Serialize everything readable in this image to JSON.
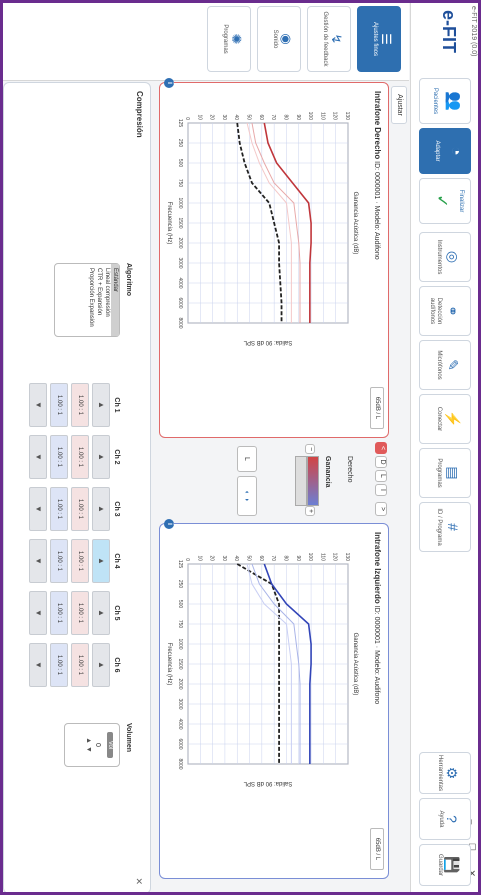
{
  "window": {
    "title": "e-FIT 2019 (0.0)",
    "controls": "– ☐ ✕"
  },
  "logo": "e-FIT",
  "mode_buttons": [
    {
      "label": "Pacientes",
      "icon": "people-icon"
    },
    {
      "label": "Adaptar",
      "icon": "hearing-aid-icon"
    },
    {
      "label": "Finalizar",
      "icon": "check-icon"
    }
  ],
  "nav": [
    {
      "label": "Instrumentos",
      "icon": "target-icon"
    },
    {
      "label": "Detección audífonos",
      "icon": "link-icon"
    },
    {
      "label": "Micrófonos",
      "icon": "mic-icon"
    },
    {
      "label": "Conectar",
      "icon": "plug-icon"
    },
    {
      "label": "Programas",
      "icon": "doc-icon"
    },
    {
      "label": "ID / Programa",
      "icon": "id-icon"
    }
  ],
  "right_tools": [
    {
      "label": "Herramientas",
      "icon": "tools-icon"
    },
    {
      "label": "Ayuda",
      "icon": "help-icon"
    },
    {
      "label": "Guardar",
      "icon": "save-icon"
    }
  ],
  "left_panel": [
    {
      "label": "Ajustes finos",
      "icon": "sliders-icon"
    },
    {
      "label": "Gestión de feedback",
      "icon": "feedback-icon"
    },
    {
      "label": "Sonido",
      "icon": "wave-icon"
    },
    {
      "label": "Programas",
      "icon": "gear-icon"
    }
  ],
  "tab": "Ajustar",
  "right_panel": {
    "ear": "Derecho",
    "ear_prefix": "Intrafone",
    "subtitle": "ID: 0000001 · Modelo: Audifono",
    "selector": "65dB / L"
  },
  "left_panel_chart": {
    "ear": "Izquierdo",
    "ear_prefix": "Intrafone",
    "subtitle": "ID: 0000001 · Modelo: Audifono",
    "selector": "65dB / L"
  },
  "center": {
    "ganancia": "Ganancia",
    "ear_label": "Derecho",
    "btn_prev": "<",
    "btn_next": ">",
    "link_label": "L",
    "tone_labels": [
      "D",
      "L",
      "I"
    ]
  },
  "chart_data": [
    {
      "type": "line",
      "title": "Ganancia Acústica (dB)",
      "xlabel": "Frecuencia (Hz)",
      "ylabel": "Salida: 90 dB SPL",
      "x": [
        125,
        250,
        500,
        750,
        1000,
        1500,
        2000,
        3000,
        4000,
        6000,
        8000
      ],
      "ylim": [
        0,
        130
      ],
      "grid": true,
      "series": [
        {
          "color": "#222222",
          "values": [
            40,
            42,
            46,
            52,
            66,
            70,
            74,
            74,
            75,
            76,
            76
          ]
        },
        {
          "color": "#e8a9a9",
          "values": [
            52,
            55,
            62,
            70,
            86,
            88,
            90,
            91,
            91,
            91,
            91
          ]
        },
        {
          "color": "#f4c9c9",
          "values": [
            48,
            52,
            58,
            66,
            80,
            82,
            84,
            84,
            84,
            84,
            84
          ]
        },
        {
          "color": "#c0363b",
          "values": [
            62,
            65,
            72,
            85,
            98,
            100,
            100,
            99,
            99,
            99,
            99
          ]
        }
      ]
    },
    {
      "type": "line",
      "title": "Ganancia Acústica (dB)",
      "xlabel": "Frecuencia (Hz)",
      "ylabel": "Salida: 90 dB SPL",
      "x": [
        125,
        250,
        500,
        750,
        1000,
        1500,
        2000,
        3000,
        4000,
        6000,
        8000
      ],
      "ylim": [
        0,
        130
      ],
      "grid": true,
      "series": [
        {
          "color": "#222222",
          "values": [
            40,
            68,
            74,
            74,
            74,
            74,
            74,
            74,
            74,
            74,
            74
          ]
        },
        {
          "color": "#a9b4e8",
          "values": [
            52,
            58,
            70,
            86,
            88,
            90,
            91,
            91,
            91,
            91,
            91
          ]
        },
        {
          "color": "#c9cff4",
          "values": [
            48,
            52,
            62,
            80,
            82,
            84,
            84,
            84,
            84,
            84,
            84
          ]
        },
        {
          "color": "#3245b8",
          "values": [
            62,
            68,
            80,
            98,
            100,
            100,
            99,
            99,
            99,
            99,
            99
          ]
        }
      ]
    }
  ],
  "bottom": {
    "title": "Compresión",
    "close": "✕",
    "algoritmo_title": "Algoritmo",
    "algoritmos": [
      "Estándar",
      "Lineal compresión",
      "CTR + Expansión",
      "Proporción Expansión"
    ],
    "algoritmo_selected": 0,
    "channels": [
      {
        "label": "Ch 1",
        "r": "1.00 : 1",
        "l": "1.00 : 1"
      },
      {
        "label": "Ch 2",
        "r": "1.00 : 1",
        "l": "1.00 : 1"
      },
      {
        "label": "Ch 3",
        "r": "1.00 : 1",
        "l": "1.00 : 1"
      },
      {
        "label": "Ch 4",
        "r": "1.00 : 1",
        "l": "1.00 : 1"
      },
      {
        "label": "Ch 5",
        "r": "1.00 : 1",
        "l": "1.00 : 1"
      },
      {
        "label": "Ch 6",
        "r": "1.00 : 1",
        "l": "1.00 : 1"
      }
    ],
    "highlight_channel": 3,
    "volumen_title": "Volumen",
    "volumen_label": "Vol",
    "volumen_value": "0"
  }
}
